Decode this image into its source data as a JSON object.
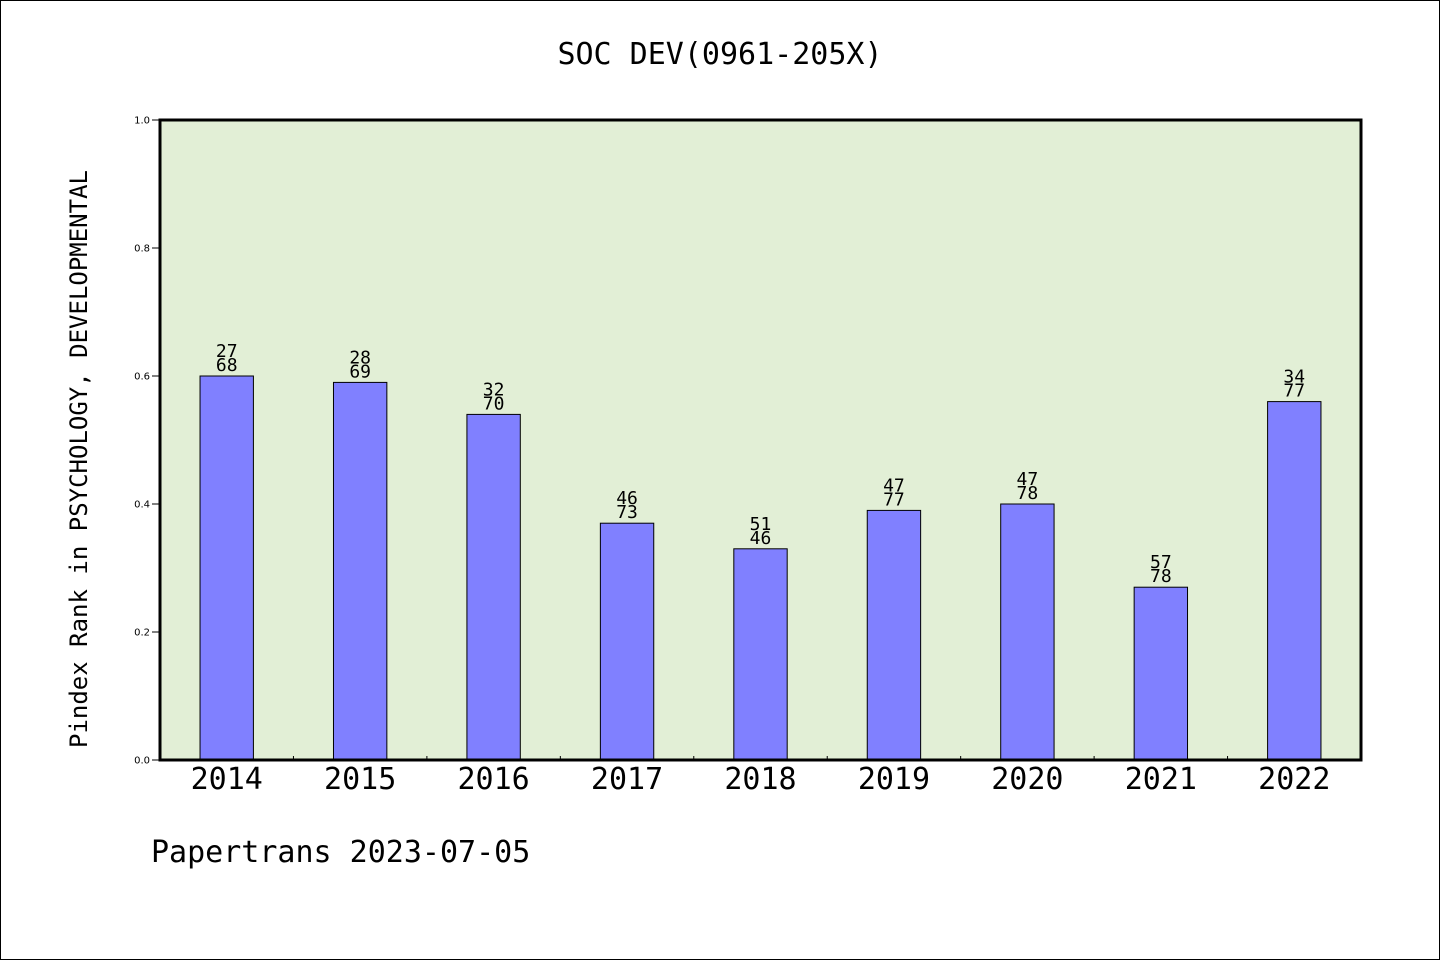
{
  "chart_data": {
    "type": "bar",
    "title": "SOC DEV(0961-205X)",
    "xlabel": "",
    "ylabel": "Pindex Rank in PSYCHOLOGY, DEVELOPMENTAL",
    "categories": [
      "2014",
      "2015",
      "2016",
      "2017",
      "2018",
      "2019",
      "2020",
      "2021",
      "2022"
    ],
    "values": [
      0.6,
      0.59,
      0.54,
      0.37,
      0.33,
      0.39,
      0.4,
      0.27,
      0.56
    ],
    "labels_top": [
      "27",
      "28",
      "32",
      "46",
      "51",
      "47",
      "47",
      "57",
      "34"
    ],
    "labels_bottom": [
      "68",
      "69",
      "70",
      "73",
      "46",
      "77",
      "78",
      "78",
      "77"
    ],
    "ylim": [
      0,
      1.0
    ],
    "yticks": [
      "0.0",
      "0.2",
      "0.4",
      "0.6",
      "0.8",
      "1.0"
    ],
    "grid": false,
    "colors": {
      "plot_background": "#e2efd6",
      "bar_fill": "#8080ff",
      "bar_stroke": "#000000"
    }
  },
  "footer": "Papertrans 2023-07-05"
}
